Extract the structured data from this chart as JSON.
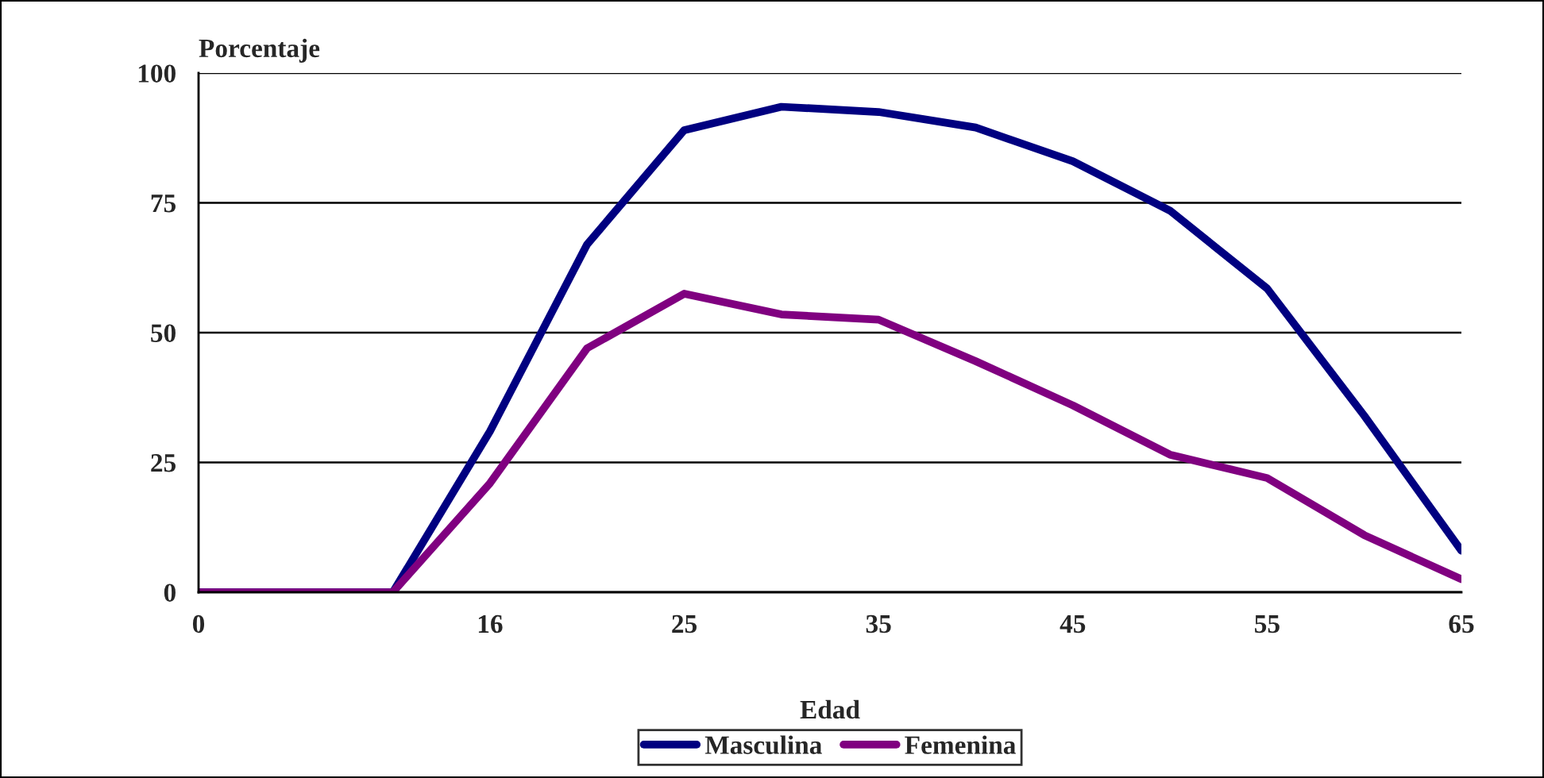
{
  "chart_data": {
    "type": "line",
    "xlabel": "Edad",
    "ylabel": "Porcentaje",
    "categories": [
      "0",
      null,
      null,
      "16",
      null,
      "25",
      null,
      "35",
      null,
      "45",
      null,
      "55",
      null,
      "65"
    ],
    "series": [
      {
        "name": "Masculina",
        "color": "#000080",
        "values": [
          0,
          0,
          0,
          31,
          67,
          89,
          93.5,
          92.5,
          89.5,
          83,
          73.5,
          58.5,
          34,
          8
        ]
      },
      {
        "name": "Femenina",
        "color": "#800080",
        "values": [
          0,
          0,
          0,
          21,
          47,
          57.5,
          53.5,
          52.5,
          44.5,
          36,
          26.5,
          22,
          11,
          2.5
        ]
      }
    ],
    "ylim": [
      0,
      100
    ],
    "yticks": [
      0,
      25,
      50,
      75,
      100
    ],
    "grid": "y",
    "legend": "bottom",
    "marker": "none",
    "line_style": "solid"
  }
}
